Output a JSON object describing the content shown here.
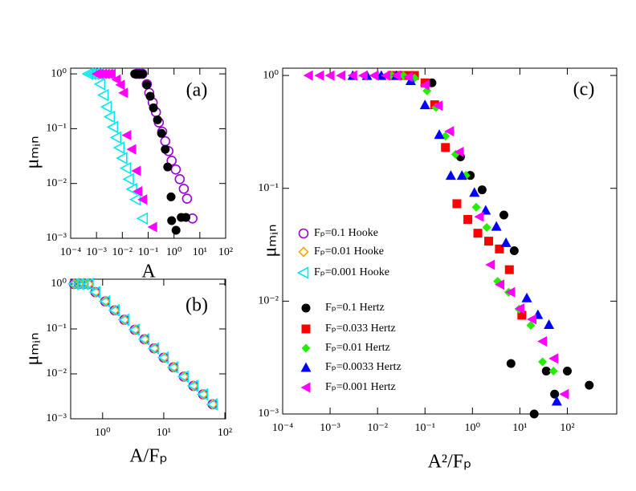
{
  "chart_data": [
    {
      "type": "scatter",
      "xscale": "log",
      "yscale": "log",
      "annotation": "(a)",
      "xlabel": "A",
      "ylabel": "μₘᵢₙ",
      "xlim": [
        0.0001,
        100
      ],
      "ylim": [
        0.001,
        1.27
      ],
      "xticks": [
        {
          "value": 0.0001,
          "label": "10⁻⁴"
        },
        {
          "value": 0.001,
          "label": "10⁻³"
        },
        {
          "value": 0.01,
          "label": "10⁻²"
        },
        {
          "value": 0.1,
          "label": "10⁻¹"
        },
        {
          "value": 1,
          "label": "10⁰"
        },
        {
          "value": 10,
          "label": "10¹"
        },
        {
          "value": 100,
          "label": "10²"
        }
      ],
      "yticks": [
        {
          "value": 0.001,
          "label": "10⁻³"
        },
        {
          "value": 0.01,
          "label": "10⁻²"
        },
        {
          "value": 0.1,
          "label": "10⁻¹"
        },
        {
          "value": 1,
          "label": "10⁰"
        }
      ],
      "series": [
        {
          "color": "#9a00d0",
          "marker": "circle-open",
          "x": [
            0.035,
            0.045,
            0.06,
            0.089,
            0.11,
            0.15,
            0.2,
            0.26,
            0.35,
            0.46,
            0.61,
            0.81,
            1.17,
            1.67,
            2.4,
            3.2,
            5.2
          ],
          "values": [
            1,
            1,
            1,
            0.65,
            0.45,
            0.3,
            0.2,
            0.13,
            0.088,
            0.059,
            0.039,
            0.026,
            0.018,
            0.012,
            0.008,
            0.0053,
            0.0023
          ]
        },
        {
          "color": "#000000",
          "marker": "circle",
          "x": [
            0.03,
            0.038,
            0.048,
            0.06,
            0.089,
            0.12,
            0.16,
            0.23,
            0.33,
            0.46,
            0.57,
            0.77,
            0.81,
            1.2,
            1.9,
            2.9
          ],
          "values": [
            1,
            1,
            1,
            1,
            0.63,
            0.39,
            0.24,
            0.145,
            0.082,
            0.042,
            0.02,
            0.0057,
            0.0021,
            0.0014,
            0.0024,
            0.0024
          ]
        },
        {
          "color": "#00e8f0",
          "marker": "triangle-left-open",
          "x": [
            0.00048,
            0.00063,
            0.00083,
            0.0011,
            0.0014,
            0.0019,
            0.0025,
            0.0033,
            0.0044,
            0.0058,
            0.0078,
            0.01,
            0.014,
            0.018,
            0.024,
            0.033,
            0.062
          ],
          "values": [
            1,
            1,
            1,
            1,
            0.65,
            0.41,
            0.25,
            0.165,
            0.107,
            0.069,
            0.045,
            0.029,
            0.019,
            0.012,
            0.0079,
            0.0051,
            0.0023
          ]
        },
        {
          "color": "#ff00ff",
          "marker": "triangle-left",
          "x": [
            0.001,
            0.0013,
            0.0017,
            0.0022,
            0.0029,
            0.0037,
            0.0059,
            0.0084,
            0.011,
            0.015,
            0.023,
            0.035,
            0.04,
            0.062,
            0.15
          ],
          "values": [
            1,
            1,
            1,
            1,
            1,
            1,
            0.79,
            0.63,
            0.45,
            0.076,
            0.042,
            0.017,
            0.0072,
            0.0051,
            0.0016
          ]
        }
      ]
    },
    {
      "type": "scatter",
      "xscale": "log",
      "yscale": "log",
      "annotation": "(b)",
      "xlabel": "A/Fₚ",
      "ylabel": "μₘᵢₙ",
      "xlim": [
        0.3,
        103
      ],
      "ylim": [
        0.001,
        1.28
      ],
      "xticks": [
        {
          "value": 1,
          "label": "10⁰"
        },
        {
          "value": 10,
          "label": "10¹"
        },
        {
          "value": 100,
          "label": "10²"
        }
      ],
      "yticks": [
        {
          "value": 0.001,
          "label": "10⁻³"
        },
        {
          "value": 0.01,
          "label": "10⁻²"
        },
        {
          "value": 0.1,
          "label": "10⁻¹"
        },
        {
          "value": 1,
          "label": "10⁰"
        }
      ],
      "series": [
        {
          "name": "Fₚ=0.1 Hooke",
          "color": "#9a00d0",
          "marker": "circle-open",
          "x": [
            0.34,
            0.41,
            0.49,
            0.59,
            0.76,
            1.1,
            1.57,
            2.26,
            3.36,
            4.83,
            6.95,
            10,
            14.4,
            21.3,
            30.6,
            44,
            63
          ],
          "values": [
            1,
            1,
            1,
            1,
            0.66,
            0.41,
            0.26,
            0.16,
            0.096,
            0.059,
            0.037,
            0.023,
            0.014,
            0.0087,
            0.0054,
            0.0035,
            0.0021
          ]
        },
        {
          "name": "Fₚ=0.01 Hooke",
          "color": "#ffa500",
          "marker": "diamond-open",
          "x": [
            0.34,
            0.41,
            0.49,
            0.59,
            0.76,
            1.1,
            1.57,
            2.26,
            3.36,
            4.83,
            6.95,
            10,
            14.4,
            21.3,
            30.6,
            44,
            63
          ],
          "values": [
            1,
            1,
            1,
            1,
            0.66,
            0.41,
            0.26,
            0.16,
            0.096,
            0.059,
            0.037,
            0.023,
            0.014,
            0.0087,
            0.0054,
            0.0035,
            0.0021
          ]
        },
        {
          "name": "Fₚ=0.001 Hooke",
          "color": "#00e8f0",
          "marker": "triangle-left-open",
          "x": [
            0.34,
            0.41,
            0.49,
            0.59,
            0.76,
            1.1,
            1.57,
            2.26,
            3.36,
            4.83,
            6.95,
            10,
            14.4,
            21.3,
            30.6,
            44,
            63
          ],
          "values": [
            1,
            1,
            1,
            1,
            0.66,
            0.41,
            0.26,
            0.16,
            0.096,
            0.059,
            0.037,
            0.023,
            0.014,
            0.0087,
            0.0054,
            0.0035,
            0.0021
          ]
        }
      ]
    },
    {
      "type": "scatter",
      "xscale": "log",
      "yscale": "log",
      "annotation": "(c)",
      "xlabel": "A²/Fₚ",
      "ylabel": "μₘᵢₙ",
      "legend": "center left",
      "xlim": [
        0.0001,
        1100
      ],
      "ylim": [
        0.001,
        1.16
      ],
      "xticks": [
        {
          "value": 0.0001,
          "label": "10⁻⁴"
        },
        {
          "value": 0.001,
          "label": "10⁻³"
        },
        {
          "value": 0.01,
          "label": "10⁻²"
        },
        {
          "value": 0.1,
          "label": "10⁻¹"
        },
        {
          "value": 1,
          "label": "10⁰"
        },
        {
          "value": 10,
          "label": "10¹"
        },
        {
          "value": 100,
          "label": "10²"
        }
      ],
      "yticks": [
        {
          "value": 0.001,
          "label": "10⁻³"
        },
        {
          "value": 0.01,
          "label": "10⁻²"
        },
        {
          "value": 0.1,
          "label": "10⁻¹"
        },
        {
          "value": 1,
          "label": "10⁰"
        }
      ],
      "series": [
        {
          "name": "Fₚ=0.1 Hertz",
          "color": "#000000",
          "marker": "circle",
          "x": [
            0.03,
            0.04,
            0.05,
            0.14,
            0.56,
            0.9,
            1.6,
            4.6,
            7.6,
            6.5,
            20,
            36,
            54,
            100,
            290
          ],
          "values": [
            1,
            1,
            1,
            0.86,
            0.19,
            0.13,
            0.097,
            0.058,
            0.028,
            0.0028,
            0.001,
            0.0024,
            0.0015,
            0.0024,
            0.0018
          ]
        },
        {
          "name": "Fₚ=0.033 Hertz",
          "color": "#ff0000",
          "marker": "square",
          "x": [
            0.02,
            0.03,
            0.045,
            0.06,
            0.1,
            0.16,
            0.27,
            0.47,
            0.8,
            1.3,
            2.2,
            3.7,
            6,
            11
          ],
          "values": [
            1,
            1,
            1,
            1,
            0.86,
            0.55,
            0.23,
            0.073,
            0.053,
            0.04,
            0.034,
            0.029,
            0.019,
            0.0075
          ]
        },
        {
          "name": "Fₚ=0.01 Hertz",
          "color": "#22ee00",
          "marker": "diamond",
          "x": [
            0.01,
            0.02,
            0.035,
            0.06,
            0.11,
            0.17,
            0.27,
            0.44,
            0.73,
            1.2,
            2,
            3.4,
            5.8,
            9.6,
            17,
            30,
            51
          ],
          "values": [
            1,
            1,
            1,
            0.95,
            0.73,
            0.52,
            0.29,
            0.2,
            0.13,
            0.068,
            0.045,
            0.015,
            0.012,
            0.0085,
            0.0061,
            0.0029,
            0.0024
          ]
        },
        {
          "name": "Fₚ=0.0033 Hertz",
          "color": "#0000ff",
          "marker": "triangle-up",
          "x": [
            0.003,
            0.006,
            0.012,
            0.025,
            0.05,
            0.1,
            0.2,
            0.35,
            0.6,
            1.1,
            1.9,
            3.2,
            5.1,
            14,
            24,
            41,
            60
          ],
          "values": [
            1,
            1,
            1,
            1,
            0.9,
            0.55,
            0.3,
            0.13,
            0.13,
            0.092,
            0.064,
            0.046,
            0.033,
            0.0107,
            0.0076,
            0.0062,
            0.0013
          ]
        },
        {
          "name": "Fₚ=0.001 Hertz",
          "color": "#ff00ff",
          "marker": "triangle-left",
          "x": [
            0.00035,
            0.0006,
            0.001,
            0.0017,
            0.003,
            0.005,
            0.0085,
            0.015,
            0.025,
            0.045,
            0.1,
            0.19,
            0.33,
            0.53,
            1.4,
            2.4,
            3.8,
            6.4,
            10,
            18,
            30,
            52,
            87
          ],
          "values": [
            1,
            1,
            1,
            1,
            1,
            1,
            1,
            1,
            1,
            0.97,
            0.82,
            0.54,
            0.32,
            0.21,
            0.056,
            0.021,
            0.014,
            0.012,
            0.0086,
            0.0069,
            0.0044,
            0.0031,
            0.0015
          ]
        }
      ]
    }
  ]
}
